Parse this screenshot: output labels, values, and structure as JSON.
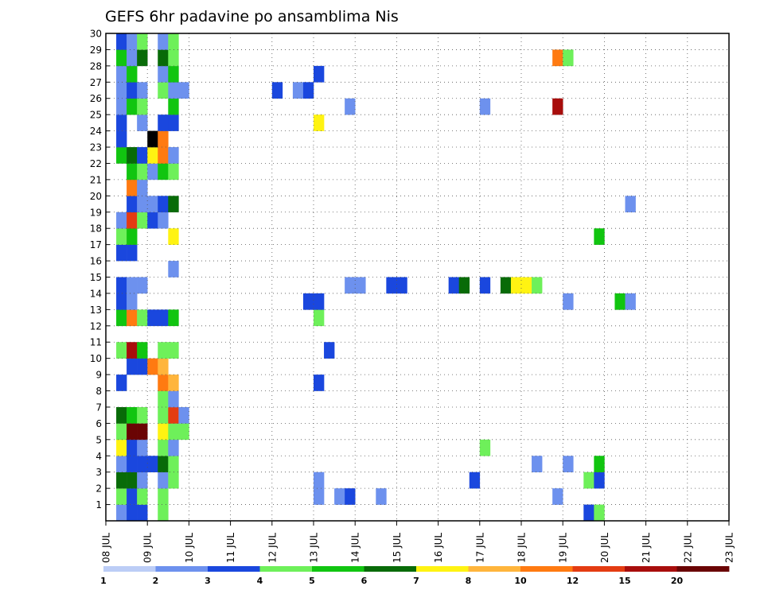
{
  "chart_data": {
    "type": "heatmap",
    "title": "GEFS 6hr padavine po ansamblima Nis",
    "x_tick_labels": [
      "08 JUL",
      "09 JUL",
      "10 JUL",
      "11 JUL",
      "12 JUL",
      "13 JUL",
      "14 JUL",
      "15 JUL",
      "16 JUL",
      "17 JUL",
      "18 JUL",
      "19 JUL",
      "20 JUL",
      "21 JUL",
      "22 JUL",
      "23 JUL"
    ],
    "y_tick_labels": [
      "1",
      "2",
      "3",
      "4",
      "5",
      "6",
      "7",
      "8",
      "9",
      "10",
      "11",
      "12",
      "13",
      "14",
      "15",
      "16",
      "17",
      "18",
      "19",
      "20",
      "21",
      "22",
      "23",
      "24",
      "25",
      "26",
      "27",
      "28",
      "29",
      "30"
    ],
    "ylim": [
      0,
      30
    ],
    "grid": true,
    "legend_placement": "bottom",
    "colorbar": {
      "colors": [
        "#bccdf6",
        "#6d91ee",
        "#1a47de",
        "#6ef05a",
        "#11c510",
        "#086b08",
        "#fff312",
        "#ffb53c",
        "#ff7a11",
        "#e43c12",
        "#a80d0c",
        "#6a0404"
      ],
      "labels": [
        "1",
        "2",
        "3",
        "4",
        "5",
        "6",
        "7",
        "8",
        "10",
        "12",
        "15",
        "20"
      ]
    },
    "cells": [
      {
        "x": 1,
        "y": 0,
        "v": 1
      },
      {
        "x": 2,
        "y": 0,
        "v": 2
      },
      {
        "x": 3,
        "y": 0,
        "v": 2
      },
      {
        "x": 5,
        "y": 0,
        "v": 3
      },
      {
        "x": 46,
        "y": 0,
        "v": 2
      },
      {
        "x": 47,
        "y": 0,
        "v": 3
      },
      {
        "x": 1,
        "y": 1,
        "v": 3
      },
      {
        "x": 2,
        "y": 1,
        "v": 2
      },
      {
        "x": 3,
        "y": 1,
        "v": 3
      },
      {
        "x": 5,
        "y": 1,
        "v": 3
      },
      {
        "x": 20,
        "y": 1,
        "v": 1
      },
      {
        "x": 22,
        "y": 1,
        "v": 1
      },
      {
        "x": 23,
        "y": 1,
        "v": 2
      },
      {
        "x": 26,
        "y": 1,
        "v": 1
      },
      {
        "x": 43,
        "y": 1,
        "v": 1
      },
      {
        "x": 1,
        "y": 2,
        "v": 5
      },
      {
        "x": 2,
        "y": 2,
        "v": 5
      },
      {
        "x": 3,
        "y": 2,
        "v": 1
      },
      {
        "x": 5,
        "y": 2,
        "v": 1
      },
      {
        "x": 6,
        "y": 2,
        "v": 3
      },
      {
        "x": 20,
        "y": 2,
        "v": 1
      },
      {
        "x": 35,
        "y": 2,
        "v": 2
      },
      {
        "x": 46,
        "y": 2,
        "v": 3
      },
      {
        "x": 47,
        "y": 2,
        "v": 2
      },
      {
        "x": 1,
        "y": 3,
        "v": 1
      },
      {
        "x": 2,
        "y": 3,
        "v": 2
      },
      {
        "x": 3,
        "y": 3,
        "v": 2
      },
      {
        "x": 4,
        "y": 3,
        "v": 2
      },
      {
        "x": 5,
        "y": 3,
        "v": 5
      },
      {
        "x": 6,
        "y": 3,
        "v": 3
      },
      {
        "x": 41,
        "y": 3,
        "v": 1
      },
      {
        "x": 44,
        "y": 3,
        "v": 1
      },
      {
        "x": 47,
        "y": 3,
        "v": 4
      },
      {
        "x": 1,
        "y": 4,
        "v": 6
      },
      {
        "x": 2,
        "y": 4,
        "v": 2
      },
      {
        "x": 3,
        "y": 4,
        "v": 1
      },
      {
        "x": 5,
        "y": 4,
        "v": 3
      },
      {
        "x": 6,
        "y": 4,
        "v": 1
      },
      {
        "x": 36,
        "y": 4,
        "v": 3
      },
      {
        "x": 1,
        "y": 5,
        "v": 3
      },
      {
        "x": 2,
        "y": 5,
        "v": 11
      },
      {
        "x": 3,
        "y": 5,
        "v": 11
      },
      {
        "x": 5,
        "y": 5,
        "v": 6
      },
      {
        "x": 6,
        "y": 5,
        "v": 3
      },
      {
        "x": 7,
        "y": 5,
        "v": 3
      },
      {
        "x": 1,
        "y": 6,
        "v": 5
      },
      {
        "x": 2,
        "y": 6,
        "v": 4
      },
      {
        "x": 3,
        "y": 6,
        "v": 3
      },
      {
        "x": 5,
        "y": 6,
        "v": 3
      },
      {
        "x": 6,
        "y": 6,
        "v": 9
      },
      {
        "x": 7,
        "y": 6,
        "v": 1
      },
      {
        "x": 5,
        "y": 7,
        "v": 3
      },
      {
        "x": 6,
        "y": 7,
        "v": 1
      },
      {
        "x": 1,
        "y": 8,
        "v": 2
      },
      {
        "x": 5,
        "y": 8,
        "v": 8
      },
      {
        "x": 6,
        "y": 8,
        "v": 7
      },
      {
        "x": 20,
        "y": 8,
        "v": 2
      },
      {
        "x": 2,
        "y": 9,
        "v": 2
      },
      {
        "x": 3,
        "y": 9,
        "v": 2
      },
      {
        "x": 4,
        "y": 9,
        "v": 8
      },
      {
        "x": 5,
        "y": 9,
        "v": 7
      },
      {
        "x": 1,
        "y": 10,
        "v": 3
      },
      {
        "x": 2,
        "y": 10,
        "v": 10
      },
      {
        "x": 3,
        "y": 10,
        "v": 4
      },
      {
        "x": 5,
        "y": 10,
        "v": 3
      },
      {
        "x": 6,
        "y": 10,
        "v": 3
      },
      {
        "x": 21,
        "y": 10,
        "v": 2
      },
      {
        "x": 1,
        "y": 12,
        "v": 4
      },
      {
        "x": 2,
        "y": 12,
        "v": 8
      },
      {
        "x": 3,
        "y": 12,
        "v": 3
      },
      {
        "x": 4,
        "y": 12,
        "v": 2
      },
      {
        "x": 5,
        "y": 12,
        "v": 2
      },
      {
        "x": 6,
        "y": 12,
        "v": 4
      },
      {
        "x": 20,
        "y": 12,
        "v": 3
      },
      {
        "x": 1,
        "y": 13,
        "v": 2
      },
      {
        "x": 2,
        "y": 13,
        "v": 1
      },
      {
        "x": 19,
        "y": 13,
        "v": 2
      },
      {
        "x": 20,
        "y": 13,
        "v": 2
      },
      {
        "x": 44,
        "y": 13,
        "v": 1
      },
      {
        "x": 49,
        "y": 13,
        "v": 4
      },
      {
        "x": 50,
        "y": 13,
        "v": 1
      },
      {
        "x": 1,
        "y": 14,
        "v": 2
      },
      {
        "x": 2,
        "y": 14,
        "v": 1
      },
      {
        "x": 3,
        "y": 14,
        "v": 1
      },
      {
        "x": 23,
        "y": 14,
        "v": 1
      },
      {
        "x": 24,
        "y": 14,
        "v": 1
      },
      {
        "x": 27,
        "y": 14,
        "v": 2
      },
      {
        "x": 28,
        "y": 14,
        "v": 2
      },
      {
        "x": 33,
        "y": 14,
        "v": 2
      },
      {
        "x": 34,
        "y": 14,
        "v": 5
      },
      {
        "x": 36,
        "y": 14,
        "v": 2
      },
      {
        "x": 38,
        "y": 14,
        "v": 5
      },
      {
        "x": 39,
        "y": 14,
        "v": 6
      },
      {
        "x": 40,
        "y": 14,
        "v": 6
      },
      {
        "x": 41,
        "y": 14,
        "v": 3
      },
      {
        "x": 6,
        "y": 15,
        "v": 1
      },
      {
        "x": 1,
        "y": 16,
        "v": 2
      },
      {
        "x": 2,
        "y": 16,
        "v": 2
      },
      {
        "x": 1,
        "y": 17,
        "v": 3
      },
      {
        "x": 2,
        "y": 17,
        "v": 4
      },
      {
        "x": 6,
        "y": 17,
        "v": 6
      },
      {
        "x": 47,
        "y": 17,
        "v": 4
      },
      {
        "x": 1,
        "y": 18,
        "v": 1
      },
      {
        "x": 2,
        "y": 18,
        "v": 9
      },
      {
        "x": 3,
        "y": 18,
        "v": 3
      },
      {
        "x": 4,
        "y": 18,
        "v": 2
      },
      {
        "x": 5,
        "y": 18,
        "v": 1
      },
      {
        "x": 2,
        "y": 19,
        "v": 2
      },
      {
        "x": 3,
        "y": 19,
        "v": 1
      },
      {
        "x": 4,
        "y": 19,
        "v": 1
      },
      {
        "x": 5,
        "y": 19,
        "v": 2
      },
      {
        "x": 6,
        "y": 19,
        "v": 5
      },
      {
        "x": 50,
        "y": 19,
        "v": 1
      },
      {
        "x": 2,
        "y": 20,
        "v": 8
      },
      {
        "x": 3,
        "y": 20,
        "v": 1
      },
      {
        "x": 2,
        "y": 21,
        "v": 4
      },
      {
        "x": 3,
        "y": 21,
        "v": 3
      },
      {
        "x": 4,
        "y": 21,
        "v": 1
      },
      {
        "x": 5,
        "y": 21,
        "v": 4
      },
      {
        "x": 6,
        "y": 21,
        "v": 3
      },
      {
        "x": 1,
        "y": 22,
        "v": 4
      },
      {
        "x": 2,
        "y": 22,
        "v": 5
      },
      {
        "x": 3,
        "y": 22,
        "v": 2
      },
      {
        "x": 4,
        "y": 22,
        "v": 6
      },
      {
        "x": 5,
        "y": 22,
        "v": 8
      },
      {
        "x": 6,
        "y": 22,
        "v": 1
      },
      {
        "x": 1,
        "y": 23,
        "v": 2
      },
      {
        "x": 4,
        "y": 23,
        "v": 12
      },
      {
        "x": 5,
        "y": 23,
        "v": 8
      },
      {
        "x": 1,
        "y": 24,
        "v": 2
      },
      {
        "x": 3,
        "y": 24,
        "v": 1
      },
      {
        "x": 5,
        "y": 24,
        "v": 2
      },
      {
        "x": 6,
        "y": 24,
        "v": 2
      },
      {
        "x": 20,
        "y": 24,
        "v": 6
      },
      {
        "x": 1,
        "y": 25,
        "v": 1
      },
      {
        "x": 2,
        "y": 25,
        "v": 4
      },
      {
        "x": 3,
        "y": 25,
        "v": 3
      },
      {
        "x": 6,
        "y": 25,
        "v": 4
      },
      {
        "x": 23,
        "y": 25,
        "v": 1
      },
      {
        "x": 36,
        "y": 25,
        "v": 1
      },
      {
        "x": 43,
        "y": 25,
        "v": 10
      },
      {
        "x": 1,
        "y": 26,
        "v": 1
      },
      {
        "x": 2,
        "y": 26,
        "v": 2
      },
      {
        "x": 3,
        "y": 26,
        "v": 1
      },
      {
        "x": 5,
        "y": 26,
        "v": 3
      },
      {
        "x": 6,
        "y": 26,
        "v": 1
      },
      {
        "x": 7,
        "y": 26,
        "v": 1
      },
      {
        "x": 16,
        "y": 26,
        "v": 2
      },
      {
        "x": 18,
        "y": 26,
        "v": 1
      },
      {
        "x": 19,
        "y": 26,
        "v": 2
      },
      {
        "x": 1,
        "y": 27,
        "v": 1
      },
      {
        "x": 2,
        "y": 27,
        "v": 4
      },
      {
        "x": 5,
        "y": 27,
        "v": 1
      },
      {
        "x": 6,
        "y": 27,
        "v": 4
      },
      {
        "x": 20,
        "y": 27,
        "v": 2
      },
      {
        "x": 1,
        "y": 28,
        "v": 4
      },
      {
        "x": 2,
        "y": 28,
        "v": 1
      },
      {
        "x": 3,
        "y": 28,
        "v": 5
      },
      {
        "x": 5,
        "y": 28,
        "v": 5
      },
      {
        "x": 6,
        "y": 28,
        "v": 3
      },
      {
        "x": 43,
        "y": 28,
        "v": 8
      },
      {
        "x": 44,
        "y": 28,
        "v": 3
      },
      {
        "x": 1,
        "y": 29,
        "v": 2
      },
      {
        "x": 2,
        "y": 29,
        "v": 1
      },
      {
        "x": 3,
        "y": 29,
        "v": 3
      },
      {
        "x": 5,
        "y": 29,
        "v": 1
      },
      {
        "x": 6,
        "y": 29,
        "v": 3
      }
    ]
  }
}
